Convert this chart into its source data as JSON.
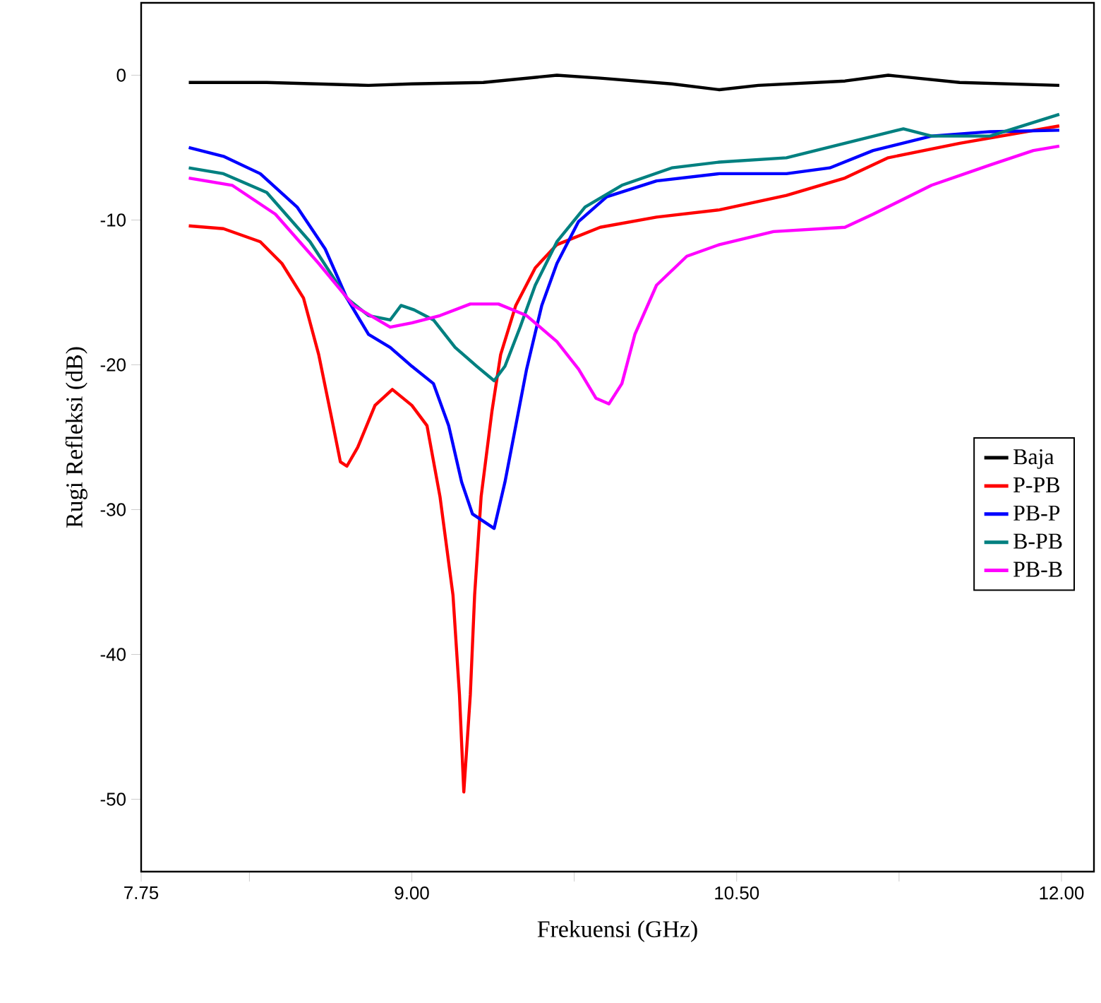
{
  "chart_data": {
    "type": "line",
    "xlabel": "Frekuensi (GHz)",
    "ylabel": "Rugi Refleksi (dB)",
    "xlim": [
      7.75,
      12.15
    ],
    "ylim": [
      -55,
      5
    ],
    "xticks": [
      7.75,
      {
        "value": 8.25,
        "label": null
      },
      {
        "value": 9.0,
        "label": "9.00"
      },
      {
        "value": 9.75,
        "label": null
      },
      {
        "value": 10.5,
        "label": "10.50"
      },
      {
        "value": 11.25,
        "label": null
      },
      {
        "value": 12.0,
        "label": "12.00"
      }
    ],
    "yticks": [
      -50,
      -40,
      -30,
      -20,
      -10,
      0
    ],
    "legend": "right",
    "grid": false,
    "line_style": "solid",
    "marker": "none",
    "series": [
      {
        "name": "Baja",
        "color": "#000000",
        "x": [
          7.97,
          8.33,
          8.8,
          9.0,
          9.33,
          9.67,
          9.87,
          10.2,
          10.42,
          10.6,
          11.0,
          11.2,
          11.53,
          11.99
        ],
        "values": [
          -0.5,
          -0.5,
          -0.7,
          -0.6,
          -0.5,
          0.0,
          -0.2,
          -0.6,
          -1.0,
          -0.7,
          -0.4,
          0.0,
          -0.5,
          -0.7
        ]
      },
      {
        "name": "P-PB",
        "color": "#ff0000",
        "x": [
          7.97,
          8.13,
          8.3,
          8.4,
          8.5,
          8.57,
          8.63,
          8.67,
          8.7,
          8.75,
          8.83,
          8.91,
          9.0,
          9.07,
          9.13,
          9.19,
          9.22,
          9.24,
          9.27,
          9.29,
          9.32,
          9.37,
          9.41,
          9.48,
          9.57,
          9.67,
          9.87,
          10.13,
          10.42,
          10.73,
          11.0,
          11.2,
          11.53,
          11.99
        ],
        "values": [
          -10.4,
          -10.6,
          -11.5,
          -13,
          -15.4,
          -19.3,
          -23.7,
          -26.7,
          -27,
          -25.7,
          -22.8,
          -21.7,
          -22.8,
          -24.2,
          -29.1,
          -35.9,
          -42.8,
          -49.5,
          -42.8,
          -35.9,
          -29.1,
          -23.2,
          -19.3,
          -15.9,
          -13.3,
          -11.7,
          -10.5,
          -9.8,
          -9.3,
          -8.3,
          -7.1,
          -5.7,
          -4.7,
          -3.5
        ]
      },
      {
        "name": "PB-P",
        "color": "#0000ff",
        "x": [
          7.97,
          8.13,
          8.3,
          8.47,
          8.6,
          8.7,
          8.8,
          8.9,
          9.0,
          9.1,
          9.17,
          9.23,
          9.28,
          9.38,
          9.43,
          9.48,
          9.53,
          9.6,
          9.67,
          9.77,
          9.9,
          10.13,
          10.42,
          10.73,
          10.93,
          11.13,
          11.4,
          11.67,
          11.99
        ],
        "values": [
          -5,
          -5.6,
          -6.8,
          -9.1,
          -12,
          -15.4,
          -17.9,
          -18.8,
          -20.1,
          -21.3,
          -24.2,
          -28.1,
          -30.3,
          -31.3,
          -28.1,
          -24.2,
          -20.3,
          -15.9,
          -13,
          -10.1,
          -8.4,
          -7.3,
          -6.8,
          -6.8,
          -6.4,
          -5.2,
          -4.2,
          -3.9,
          -3.8
        ]
      },
      {
        "name": "B-PB",
        "color": "#008080",
        "x": [
          7.97,
          8.13,
          8.33,
          8.53,
          8.7,
          8.8,
          8.9,
          8.95,
          9.01,
          9.1,
          9.2,
          9.3,
          9.38,
          9.43,
          9.5,
          9.57,
          9.67,
          9.8,
          9.97,
          10.2,
          10.42,
          10.73,
          11.0,
          11.27,
          11.4,
          11.67,
          11.99
        ],
        "values": [
          -6.4,
          -6.8,
          -8.1,
          -11.5,
          -15.4,
          -16.6,
          -16.9,
          -15.9,
          -16.2,
          -16.9,
          -18.8,
          -20.1,
          -21.1,
          -20.1,
          -17.4,
          -14.5,
          -11.5,
          -9.1,
          -7.6,
          -6.4,
          -6,
          -5.7,
          -4.7,
          -3.7,
          -4.2,
          -4.2,
          -2.7
        ]
      },
      {
        "name": "PB-B",
        "color": "#ff00ff",
        "x": [
          7.97,
          8.17,
          8.37,
          8.57,
          8.73,
          8.9,
          9.0,
          9.13,
          9.27,
          9.4,
          9.53,
          9.67,
          9.77,
          9.85,
          9.91,
          9.97,
          10.03,
          10.13,
          10.27,
          10.42,
          10.67,
          11.0,
          11.13,
          11.4,
          11.67,
          11.87,
          11.99
        ],
        "values": [
          -7.1,
          -7.6,
          -9.6,
          -13,
          -15.9,
          -17.4,
          -17.1,
          -16.6,
          -15.8,
          -15.8,
          -16.6,
          -18.4,
          -20.3,
          -22.3,
          -22.7,
          -21.3,
          -17.9,
          -14.5,
          -12.5,
          -11.7,
          -10.8,
          -10.5,
          -9.6,
          -7.6,
          -6.2,
          -5.2,
          -4.9
        ]
      }
    ]
  }
}
